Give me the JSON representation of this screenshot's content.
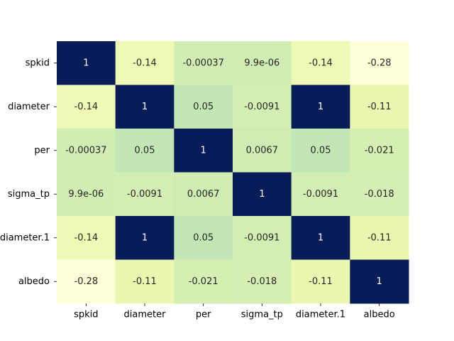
{
  "chart_data": {
    "type": "heatmap",
    "x_labels": [
      "spkid",
      "diameter",
      "per",
      "sigma_tp",
      "diameter.1",
      "albedo"
    ],
    "y_labels": [
      "spkid",
      "diameter",
      "per",
      "sigma_tp",
      "diameter.1",
      "albedo"
    ],
    "values": [
      [
        1,
        -0.14,
        -0.00037,
        9.9e-06,
        -0.14,
        -0.28
      ],
      [
        -0.14,
        1,
        0.05,
        -0.0091,
        1,
        -0.11
      ],
      [
        -0.00037,
        0.05,
        1,
        0.0067,
        0.05,
        -0.021
      ],
      [
        9.9e-06,
        -0.0091,
        0.0067,
        1,
        -0.0091,
        -0.018
      ],
      [
        -0.14,
        1,
        0.05,
        -0.0091,
        1,
        -0.11
      ],
      [
        -0.28,
        -0.11,
        -0.021,
        -0.018,
        -0.11,
        1
      ]
    ],
    "annotations": [
      [
        "1",
        "-0.14",
        "-0.00037",
        "9.9e-06",
        "-0.14",
        "-0.28"
      ],
      [
        "-0.14",
        "1",
        "0.05",
        "-0.0091",
        "1",
        "-0.11"
      ],
      [
        "-0.00037",
        "0.05",
        "1",
        "0.0067",
        "0.05",
        "-0.021"
      ],
      [
        "9.9e-06",
        "-0.0091",
        "0.0067",
        "1",
        "-0.0091",
        "-0.018"
      ],
      [
        "-0.14",
        "1",
        "0.05",
        "-0.0091",
        "1",
        "-0.11"
      ],
      [
        "-0.28",
        "-0.11",
        "-0.021",
        "-0.018",
        "-0.11",
        "1"
      ]
    ],
    "colormap": "YlGnBu",
    "colorbar": false,
    "value_range": [
      -0.28,
      1
    ]
  }
}
